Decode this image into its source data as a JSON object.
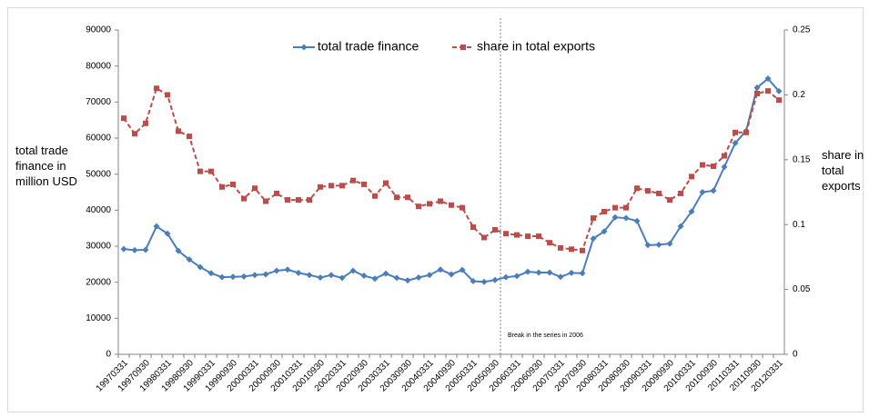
{
  "chart_data": {
    "type": "line",
    "categories": [
      "19970331",
      null,
      "19970930",
      null,
      "19980331",
      null,
      "19980930",
      null,
      "19990331",
      null,
      "19990930",
      null,
      "20000331",
      null,
      "20000930",
      null,
      "20010331",
      null,
      "20010930",
      null,
      "20020331",
      null,
      "20020930",
      null,
      "20030331",
      null,
      "20030930",
      null,
      "20040331",
      null,
      "20040930",
      null,
      "20050331",
      null,
      "20050930",
      null,
      "20060331",
      null,
      "20060930",
      null,
      "20070331",
      null,
      "20070930",
      null,
      "20080331",
      null,
      "20080930",
      null,
      "20090331",
      null,
      "20090930",
      null,
      "20100331",
      null,
      "20100930",
      null,
      "20110331",
      null,
      "20110930",
      null,
      "20120331"
    ],
    "series": [
      {
        "name": "total trade finance",
        "color": "#4a7ebb",
        "marker": "diamond",
        "line_style": "solid",
        "axis": "y",
        "values": [
          29200,
          28900,
          29000,
          35500,
          33500,
          28700,
          26300,
          24200,
          22500,
          21400,
          21500,
          21600,
          22000,
          22200,
          23200,
          23500,
          22600,
          22000,
          21300,
          22000,
          21200,
          23200,
          21800,
          21000,
          22400,
          21200,
          20500,
          21300,
          22000,
          23500,
          22200,
          23400,
          20300,
          20100,
          20600,
          21400,
          21700,
          22900,
          22700,
          22700,
          21500,
          22600,
          22500,
          32100,
          34100,
          38000,
          37800,
          37000,
          30300,
          30400,
          30700,
          35500,
          39600,
          45000,
          45400,
          52000,
          58600,
          62000,
          74000,
          76500,
          73000
        ]
      },
      {
        "name": "share in total exports",
        "color": "#be4b48",
        "marker": "square",
        "line_style": "dashed",
        "axis": "y2",
        "values": [
          0.182,
          0.17,
          0.178,
          0.205,
          0.2,
          0.172,
          0.168,
          0.141,
          0.141,
          0.129,
          0.131,
          0.12,
          0.128,
          0.118,
          0.124,
          0.119,
          0.119,
          0.119,
          0.129,
          0.13,
          0.13,
          0.134,
          0.131,
          0.122,
          0.132,
          0.121,
          0.121,
          0.114,
          0.116,
          0.118,
          0.115,
          0.113,
          0.098,
          0.09,
          0.096,
          0.093,
          0.092,
          0.091,
          0.091,
          0.086,
          0.082,
          0.081,
          0.08,
          0.105,
          0.11,
          0.113,
          0.113,
          0.128,
          0.126,
          0.124,
          0.119,
          0.124,
          0.137,
          0.146,
          0.145,
          0.153,
          0.171,
          0.171,
          0.201,
          0.203,
          0.196
        ]
      }
    ],
    "y_label": "total trade finance in million USD",
    "y2_label": "share in total exports",
    "ylim": [
      0,
      90000
    ],
    "yticks": [
      0,
      10000,
      20000,
      30000,
      40000,
      50000,
      60000,
      70000,
      80000,
      90000
    ],
    "y2lim": [
      0,
      0.25
    ],
    "y2ticks": [
      0,
      0.05,
      0.1,
      0.15,
      0.2,
      0.25
    ],
    "annotation": "Break in the series in 2006",
    "legend": "top",
    "grid": false
  }
}
